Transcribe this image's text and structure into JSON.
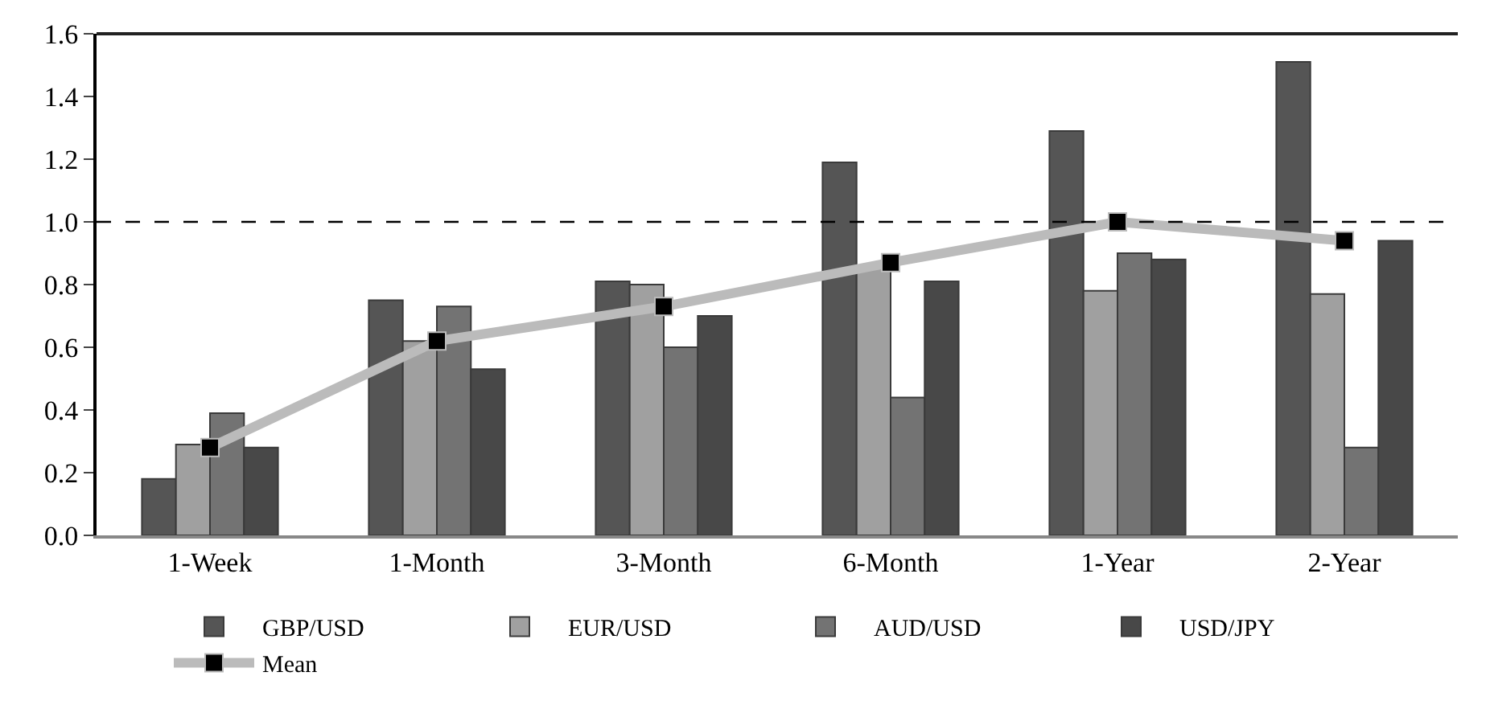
{
  "chart_data": {
    "type": "bar",
    "categories": [
      "1-Week",
      "1-Month",
      "3-Month",
      "6-Month",
      "1-Year",
      "2-Year"
    ],
    "series": [
      {
        "name": "GBP/USD",
        "color": "#555555",
        "values": [
          0.18,
          0.75,
          0.81,
          1.19,
          1.29,
          1.51
        ]
      },
      {
        "name": "EUR/USD",
        "color": "#a0a0a0",
        "values": [
          0.29,
          0.62,
          0.8,
          0.86,
          0.78,
          0.77
        ]
      },
      {
        "name": "AUD/USD",
        "color": "#737373",
        "values": [
          0.39,
          0.73,
          0.6,
          0.44,
          0.9,
          0.28
        ]
      },
      {
        "name": "USD/JPY",
        "color": "#484848",
        "values": [
          0.28,
          0.53,
          0.7,
          0.81,
          0.88,
          0.94
        ]
      },
      {
        "name": "Mean",
        "type": "line",
        "color": "#bbbbbb",
        "marker": "square",
        "values": [
          0.28,
          0.62,
          0.73,
          0.87,
          1.0,
          0.94
        ]
      }
    ],
    "ylim": [
      0,
      1.6
    ],
    "yticks": [
      {
        "value": 0,
        "label": "0.0"
      },
      0.2,
      0.4,
      0.6,
      0.8,
      {
        "value": 1,
        "label": "1.0"
      },
      1.2,
      1.4,
      1.6
    ],
    "ref_lines": [
      {
        "axis": "y",
        "value": 1.0,
        "label": null,
        "color": "#000000",
        "line_style": "dashed"
      }
    ],
    "legend": "bottom"
  }
}
